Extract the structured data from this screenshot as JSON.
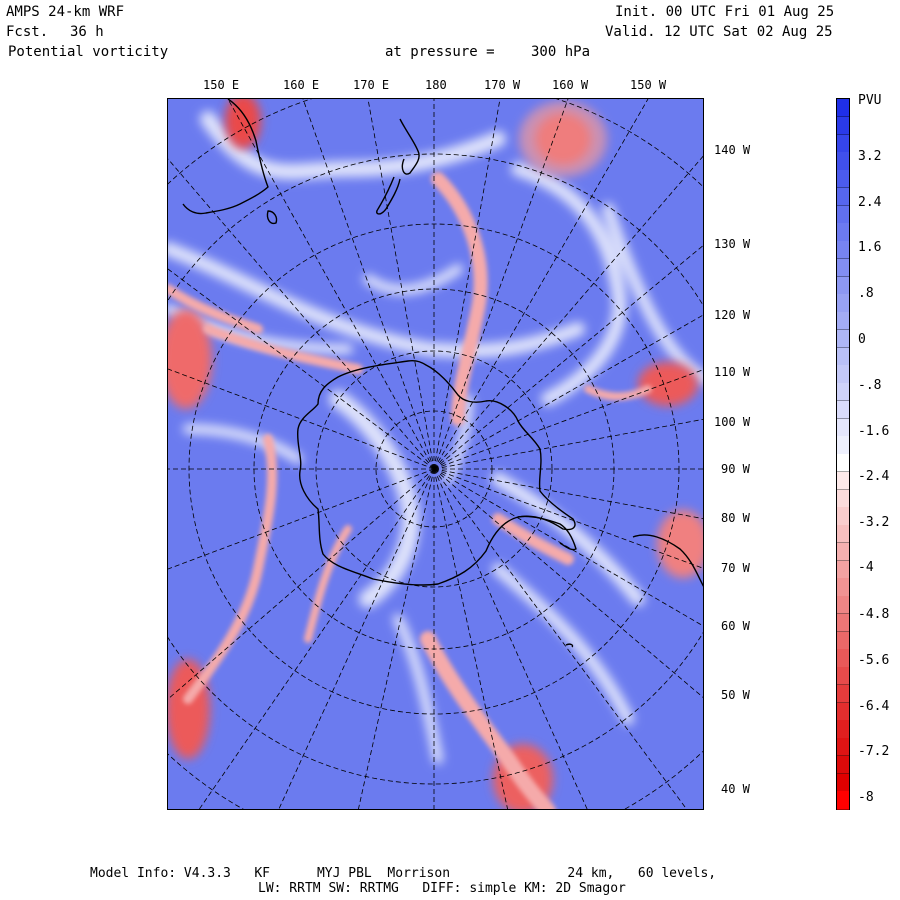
{
  "header": {
    "model": "AMPS 24-km WRF",
    "forecast_label": "Fcst.",
    "forecast_value": "36 h",
    "field": "Potential vorticity",
    "level_label": "at pressure =",
    "level_value": "300 hPa",
    "init": "Init. 00 UTC Fri 01 Aug 25",
    "valid": "Valid. 12 UTC Sat 02 Aug 25"
  },
  "longitude_labels_top": [
    "150 E",
    "160 E",
    "170 E",
    "180",
    "170 W",
    "160 W",
    "150 W"
  ],
  "longitude_labels_right": [
    "140 W",
    "130 W",
    "120 W",
    "110 W",
    "100 W",
    "90 W",
    "80 W",
    "70 W",
    "60 W",
    "50 W",
    "40 W"
  ],
  "colorbar": {
    "unit": "PVU",
    "ticks": [
      "3.2",
      "2.4",
      "1.6",
      ".8",
      "0",
      "-.8",
      "-1.6",
      "-2.4",
      "-3.2",
      "-4",
      "-4.8",
      "-5.6",
      "-6.4",
      "-7.2",
      "-8"
    ],
    "colors_top_to_bottom": [
      "#1f2fe8",
      "#2a3ae9",
      "#3545ea",
      "#4050ec",
      "#4b5bed",
      "#5666ee",
      "#6170ef",
      "#6c7af0",
      "#7784f1",
      "#828ef2",
      "#8d98f3",
      "#98a2f4",
      "#a3acf5",
      "#aeb6f6",
      "#b9c0f7",
      "#c4c9f8",
      "#cfd3fa",
      "#dadcfb",
      "#e4e6fc",
      "#eef0fd",
      "#ffffff",
      "#fdeaea",
      "#fbdcdc",
      "#f9cdcd",
      "#f7bfbf",
      "#f5b0b0",
      "#f3a2a2",
      "#f19393",
      "#ef8585",
      "#ed7676",
      "#eb6868",
      "#e95959",
      "#e74b4b",
      "#e53c3c",
      "#e32e2e",
      "#e11f1f",
      "#df1414",
      "#dd0a0a",
      "#e00000",
      "#ff0000"
    ]
  },
  "colors": {
    "background": "#6d7ef0",
    "positive": "#ef4a4a",
    "neutral": "#ffffff"
  },
  "footer": {
    "line1": "Model Info: V4.3.3   KF      MYJ PBL  Morrison               24 km,   60 levels,",
    "line2": "LW: RRTM SW: RRTMG   DIFF: simple KM: 2D Smagor"
  }
}
